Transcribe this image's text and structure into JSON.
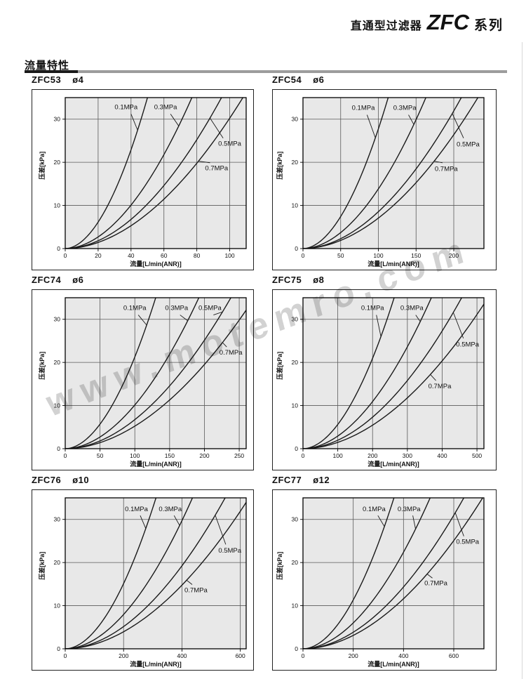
{
  "header": {
    "prefix": "直通型过滤器",
    "series": "ZFC",
    "suffix": "系列"
  },
  "section_title": "流量特性",
  "watermark": {
    "text": "www.motemro.com"
  },
  "colors": {
    "plot_bg": "#e8e8e8",
    "grid": "#5a5a5a",
    "curve": "#1a1a1a",
    "frame": "#000000",
    "rule_gray": "#9c9c9c"
  },
  "chart_data": [
    {
      "type": "line",
      "model": "ZFC53",
      "bore": "ø4",
      "xlabel": "流量[L/min(ANR)]",
      "ylabel": "压差[kPa]",
      "xlim": [
        0,
        110
      ],
      "ylim": [
        0,
        35
      ],
      "exponent": 1.9,
      "xticks": [
        0,
        20,
        40,
        60,
        80,
        100
      ],
      "yticks": [
        0,
        10,
        20,
        30
      ],
      "grid": true,
      "series": [
        {
          "name": "0.1MPa",
          "q_at_35kPa": 50,
          "label": {
            "x": 37,
            "y": 32.8
          },
          "leader": {
            "sx": 40,
            "sy": 31.2,
            "cx": 44
          }
        },
        {
          "name": "0.3MPa",
          "q_at_35kPa": 77,
          "label": {
            "x": 61,
            "y": 32.8
          },
          "leader": {
            "sx": 64,
            "sy": 31.2,
            "cx": 69
          }
        },
        {
          "name": "0.5MPa",
          "q_at_35kPa": 95,
          "label": {
            "x": 100,
            "y": 24.3
          },
          "leader": {
            "sx": 96,
            "sy": 25.6,
            "cx": 88
          }
        },
        {
          "name": "0.7MPa",
          "q_at_35kPa": 108,
          "label": {
            "x": 92,
            "y": 18.6
          },
          "leader": {
            "sx": 88,
            "sy": 19.9,
            "cx": 81
          }
        }
      ]
    },
    {
      "type": "line",
      "model": "ZFC54",
      "bore": "ø6",
      "xlabel": "流量[L/min(ANR)]",
      "ylabel": "压差[kPa]",
      "xlim": [
        0,
        240
      ],
      "ylim": [
        0,
        35
      ],
      "exponent": 1.9,
      "xticks": [
        0,
        50,
        100,
        150,
        200
      ],
      "yticks": [
        0,
        10,
        20,
        30
      ],
      "grid": true,
      "series": [
        {
          "name": "0.1MPa",
          "q_at_35kPa": 113,
          "label": {
            "x": 80,
            "y": 32.6
          },
          "leader": {
            "sx": 85,
            "sy": 31.0,
            "cx": 96
          }
        },
        {
          "name": "0.3MPa",
          "q_at_35kPa": 163,
          "label": {
            "x": 135,
            "y": 32.6
          },
          "leader": {
            "sx": 140,
            "sy": 31.0,
            "cx": 147
          }
        },
        {
          "name": "0.5MPa",
          "q_at_35kPa": 210,
          "label": {
            "x": 219,
            "y": 24.2
          },
          "leader": {
            "sx": 213,
            "sy": 25.6,
            "cx": 198
          }
        },
        {
          "name": "0.7MPa",
          "q_at_35kPa": 232,
          "label": {
            "x": 190,
            "y": 18.5
          },
          "leader": {
            "sx": 185,
            "sy": 19.9,
            "cx": 174
          }
        }
      ]
    },
    {
      "type": "line",
      "model": "ZFC74",
      "bore": "ø6",
      "xlabel": "流量[L/min(ANR)]",
      "ylabel": "压差[kPa]",
      "xlim": [
        0,
        260
      ],
      "ylim": [
        0,
        35
      ],
      "exponent": 1.9,
      "xticks": [
        0,
        50,
        100,
        150,
        200,
        250
      ],
      "yticks": [
        0,
        10,
        20,
        30
      ],
      "grid": true,
      "series": [
        {
          "name": "0.1MPa",
          "q_at_35kPa": 130,
          "label": {
            "x": 100,
            "y": 32.6
          },
          "leader": {
            "sx": 105,
            "sy": 31.0,
            "cx": 117
          }
        },
        {
          "name": "0.3MPa",
          "q_at_35kPa": 192,
          "label": {
            "x": 160,
            "y": 32.6
          },
          "leader": {
            "sx": 165,
            "sy": 31.0,
            "cx": 176
          }
        },
        {
          "name": "0.5MPa",
          "q_at_35kPa": 238,
          "label": {
            "x": 208,
            "y": 32.6
          },
          "leader": {
            "sx": 213,
            "sy": 31.0,
            "cx": 226
          }
        },
        {
          "name": "0.7MPa",
          "q_at_35kPa": 272,
          "label": {
            "x": 238,
            "y": 22.3
          },
          "leader": {
            "sx": 232,
            "sy": 23.6,
            "cx": 226
          }
        }
      ]
    },
    {
      "type": "line",
      "model": "ZFC75",
      "bore": "ø8",
      "xlabel": "流量[L/min(ANR)]",
      "ylabel": "压差[kPa]",
      "xlim": [
        0,
        520
      ],
      "ylim": [
        0,
        35
      ],
      "exponent": 1.9,
      "xticks": [
        0,
        100,
        200,
        300,
        400,
        500
      ],
      "yticks": [
        0,
        10,
        20,
        30
      ],
      "grid": true,
      "series": [
        {
          "name": "0.1MPa",
          "q_at_35kPa": 262,
          "label": {
            "x": 200,
            "y": 32.6
          },
          "leader": {
            "sx": 211,
            "sy": 31.0,
            "cx": 224
          }
        },
        {
          "name": "0.3MPa",
          "q_at_35kPa": 369,
          "label": {
            "x": 313,
            "y": 32.6
          },
          "leader": {
            "sx": 324,
            "sy": 31.0,
            "cx": 337
          }
        },
        {
          "name": "0.5MPa",
          "q_at_35kPa": 456,
          "label": {
            "x": 473,
            "y": 24.2
          },
          "leader": {
            "sx": 461,
            "sy": 25.6,
            "cx": 432
          }
        },
        {
          "name": "0.7MPa",
          "q_at_35kPa": 532,
          "label": {
            "x": 393,
            "y": 14.5
          },
          "leader": {
            "sx": 382,
            "sy": 15.8,
            "cx": 366
          }
        }
      ]
    },
    {
      "type": "line",
      "model": "ZFC76",
      "bore": "ø10",
      "xlabel": "流量[L/min(ANR)]",
      "ylabel": "压差[kPa]",
      "xlim": [
        0,
        620
      ],
      "ylim": [
        0,
        35
      ],
      "exponent": 1.9,
      "xticks": [
        0,
        200,
        400,
        600
      ],
      "yticks": [
        0,
        10,
        20,
        30
      ],
      "grid": true,
      "series": [
        {
          "name": "0.1MPa",
          "q_at_35kPa": 311,
          "label": {
            "x": 244,
            "y": 32.4
          },
          "leader": {
            "sx": 257,
            "sy": 30.9,
            "cx": 276
          }
        },
        {
          "name": "0.3MPa",
          "q_at_35kPa": 436,
          "label": {
            "x": 360,
            "y": 32.4
          },
          "leader": {
            "sx": 373,
            "sy": 30.9,
            "cx": 392
          }
        },
        {
          "name": "0.5MPa",
          "q_at_35kPa": 548,
          "label": {
            "x": 564,
            "y": 22.8
          },
          "leader": {
            "sx": 550,
            "sy": 24.2,
            "cx": 514
          }
        },
        {
          "name": "0.7MPa",
          "q_at_35kPa": 630,
          "label": {
            "x": 448,
            "y": 13.6
          },
          "leader": {
            "sx": 435,
            "sy": 14.9,
            "cx": 416
          }
        }
      ]
    },
    {
      "type": "line",
      "model": "ZFC77",
      "bore": "ø12",
      "xlabel": "流量[L/min(ANR)]",
      "ylabel": "压差[kPa]",
      "xlim": [
        0,
        720
      ],
      "ylim": [
        0,
        35
      ],
      "exponent": 1.9,
      "xticks": [
        0,
        200,
        400,
        600
      ],
      "yticks": [
        0,
        10,
        20,
        30
      ],
      "grid": true,
      "series": [
        {
          "name": "0.1MPa",
          "q_at_35kPa": 362,
          "label": {
            "x": 283,
            "y": 32.4
          },
          "leader": {
            "sx": 298,
            "sy": 30.9,
            "cx": 324
          }
        },
        {
          "name": "0.3MPa",
          "q_at_35kPa": 506,
          "label": {
            "x": 422,
            "y": 32.4
          },
          "leader": {
            "sx": 437,
            "sy": 30.9,
            "cx": 448
          }
        },
        {
          "name": "0.5MPa",
          "q_at_35kPa": 640,
          "label": {
            "x": 655,
            "y": 24.8
          },
          "leader": {
            "sx": 640,
            "sy": 26.1,
            "cx": 606
          }
        },
        {
          "name": "0.7MPa",
          "q_at_35kPa": 715,
          "label": {
            "x": 529,
            "y": 15.2
          },
          "leader": {
            "sx": 515,
            "sy": 16.4,
            "cx": 494
          }
        }
      ]
    }
  ]
}
